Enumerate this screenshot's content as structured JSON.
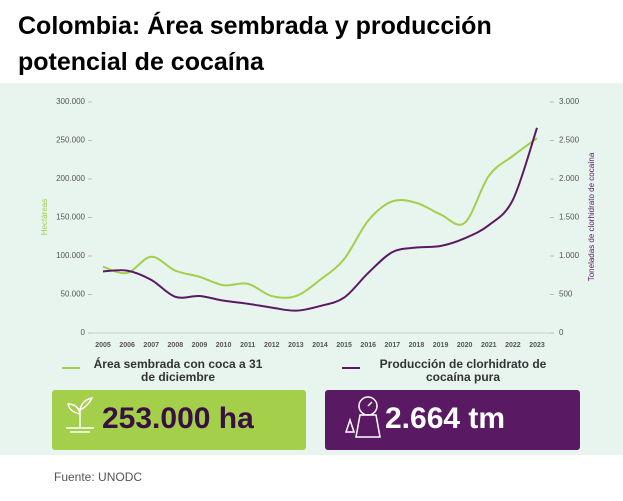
{
  "chart_data": {
    "type": "line",
    "title": "Colombia: Área sembrada y producción potencial de cocaína",
    "y_label": "Hectáreas",
    "y2_label": "Toneladas de clorhidrato de cocaína",
    "categories": [
      "2005",
      "2006",
      "2007",
      "2008",
      "2009",
      "2010",
      "2011",
      "2012",
      "2013",
      "2014",
      "2015",
      "2016",
      "2017",
      "2018",
      "2019",
      "2020",
      "2021",
      "2022",
      "2023"
    ],
    "series": [
      {
        "name": "Área sembrada con coca a 31 de diciembre",
        "color": "#a3cf4a",
        "values": [
          86000,
          78000,
          99000,
          81000,
          73000,
          62000,
          64000,
          48000,
          48000,
          69000,
          96000,
          146000,
          171000,
          169000,
          154000,
          143000,
          204000,
          230000,
          253000
        ]
      },
      {
        "name": "Producción de clorhidrato de cocaína pura",
        "color": "#5a1a63",
        "axis": "y2",
        "values": [
          800,
          810,
          690,
          470,
          480,
          420,
          380,
          330,
          290,
          350,
          460,
          780,
          1050,
          1110,
          1130,
          1230,
          1400,
          1730,
          2664
        ]
      }
    ],
    "ylim": [
      0,
      300000
    ],
    "yticks": [
      0,
      {
        "value": 50000,
        "label": "50.000"
      },
      {
        "value": 100000,
        "label": "100.000"
      },
      {
        "value": 150000,
        "label": "150.000"
      },
      {
        "value": 200000,
        "label": "200.000"
      },
      {
        "value": 250000,
        "label": "250.000"
      },
      {
        "value": 300000,
        "label": "300.000"
      }
    ],
    "y2lim": [
      0,
      3000
    ],
    "y2ticks": [
      0,
      500,
      {
        "value": 1000,
        "label": "1.000"
      },
      {
        "value": 1500,
        "label": "1.500"
      },
      {
        "value": 2000,
        "label": "2.000"
      },
      {
        "value": 2500,
        "label": "2.500"
      },
      {
        "value": 3000,
        "label": "3.000"
      }
    ],
    "callouts": [
      "253.000 ha",
      "2.664 tm"
    ],
    "source": "Fuente: UNODC"
  }
}
